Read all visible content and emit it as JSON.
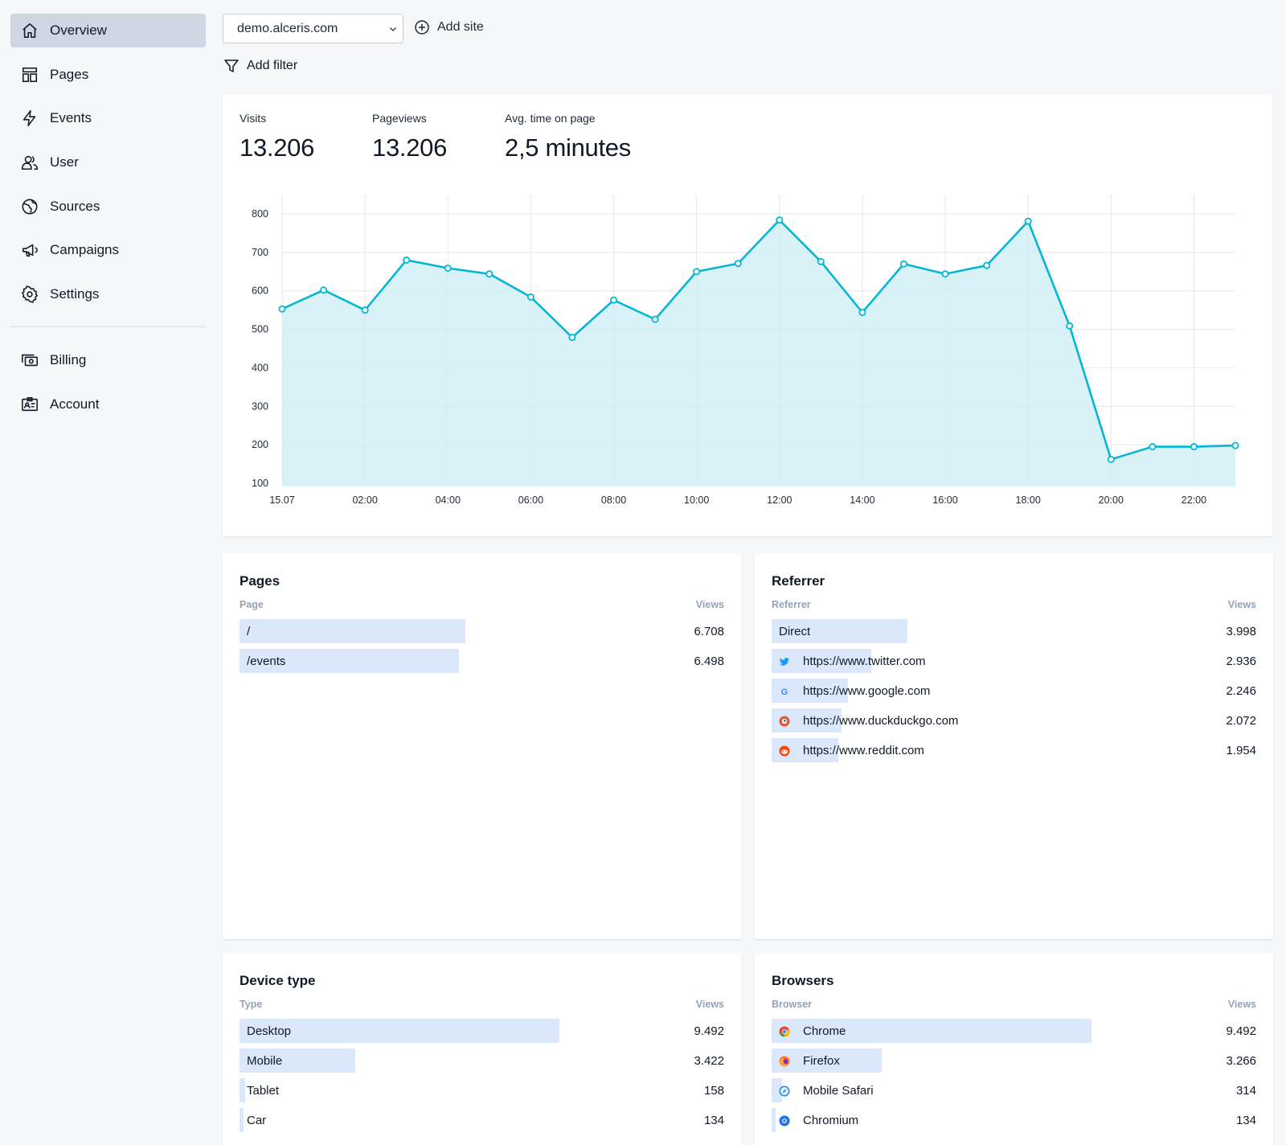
{
  "sidebar": {
    "items": [
      {
        "label": "Overview",
        "icon": "home-icon",
        "active": true
      },
      {
        "label": "Pages",
        "icon": "layout-icon"
      },
      {
        "label": "Events",
        "icon": "lightning-icon"
      },
      {
        "label": "User",
        "icon": "users-icon"
      },
      {
        "label": "Sources",
        "icon": "globe-icon"
      },
      {
        "label": "Campaigns",
        "icon": "megaphone-icon"
      },
      {
        "label": "Settings",
        "icon": "gear-icon"
      }
    ],
    "secondary": [
      {
        "label": "Billing",
        "icon": "cash-icon"
      },
      {
        "label": "Account",
        "icon": "id-card-icon"
      }
    ]
  },
  "topbar": {
    "site": "demo.alceris.com",
    "add_site": "Add site",
    "add_filter": "Add filter"
  },
  "stats": {
    "visits_label": "Visits",
    "visits_value": "13.206",
    "pageviews_label": "Pageviews",
    "pageviews_value": "13.206",
    "avg_label": "Avg. time on page",
    "avg_value": "2,5 minutes"
  },
  "chart_data": {
    "type": "area",
    "title": "",
    "xlabel": "",
    "ylabel": "",
    "x": [
      "15.07",
      "01:00",
      "02:00",
      "03:00",
      "04:00",
      "05:00",
      "06:00",
      "07:00",
      "08:00",
      "09:00",
      "10:00",
      "11:00",
      "12:00",
      "13:00",
      "14:00",
      "15:00",
      "16:00",
      "17:00",
      "18:00",
      "19:00",
      "20:00",
      "21:00",
      "22:00",
      "23:00"
    ],
    "x_tick_labels": [
      "15.07",
      "02:00",
      "04:00",
      "06:00",
      "08:00",
      "10:00",
      "12:00",
      "14:00",
      "16:00",
      "18:00",
      "20:00",
      "22:00"
    ],
    "y_ticks": [
      100,
      200,
      300,
      400,
      500,
      600,
      700,
      800
    ],
    "ylim": [
      100,
      800
    ],
    "series": [
      {
        "name": "Visits",
        "values": [
          553,
          602,
          550,
          680,
          659,
          644,
          584,
          479,
          576,
          526,
          650,
          671,
          784,
          676,
          544,
          670,
          644,
          666,
          781,
          509,
          162,
          195,
          195,
          198
        ]
      }
    ],
    "grid": true,
    "colors": {
      "line": "#06b6d4",
      "fill": "#cbeef5"
    }
  },
  "tables": {
    "pages": {
      "title": "Pages",
      "col_left": "Page",
      "col_right": "Views",
      "rows": [
        {
          "label": "/",
          "value": "6.708",
          "fraction": 0.466
        },
        {
          "label": "/events",
          "value": "6.498",
          "fraction": 0.452
        }
      ]
    },
    "referrer": {
      "title": "Referrer",
      "col_left": "Referrer",
      "col_right": "Views",
      "rows": [
        {
          "label": "Direct",
          "value": "3.998",
          "fraction": 0.28,
          "icon": ""
        },
        {
          "label": "https://www.twitter.com",
          "value": "2.936",
          "fraction": 0.206,
          "icon": "twitter-icon"
        },
        {
          "label": "https://www.google.com",
          "value": "2.246",
          "fraction": 0.157,
          "icon": "google-icon"
        },
        {
          "label": "https://www.duckduckgo.com",
          "value": "2.072",
          "fraction": 0.145,
          "icon": "duckduckgo-icon"
        },
        {
          "label": "https://www.reddit.com",
          "value": "1.954",
          "fraction": 0.137,
          "icon": "reddit-icon"
        }
      ]
    },
    "device": {
      "title": "Device type",
      "col_left": "Type",
      "col_right": "Views",
      "rows": [
        {
          "label": "Desktop",
          "value": "9.492",
          "fraction": 0.66
        },
        {
          "label": "Mobile",
          "value": "3.422",
          "fraction": 0.238
        },
        {
          "label": "Tablet",
          "value": "158",
          "fraction": 0.011
        },
        {
          "label": "Car",
          "value": "134",
          "fraction": 0.009
        }
      ]
    },
    "browsers": {
      "title": "Browsers",
      "col_left": "Browser",
      "col_right": "Views",
      "rows": [
        {
          "label": "Chrome",
          "value": "9.492",
          "fraction": 0.66,
          "icon": "chrome-icon"
        },
        {
          "label": "Firefox",
          "value": "3.266",
          "fraction": 0.227,
          "icon": "firefox-icon"
        },
        {
          "label": "Mobile Safari",
          "value": "314",
          "fraction": 0.022,
          "icon": "safari-icon"
        },
        {
          "label": "Chromium",
          "value": "134",
          "fraction": 0.009,
          "icon": "chromium-icon"
        }
      ]
    }
  },
  "colors": {
    "accent": "#06b6d4",
    "bar": "#dbe8fb",
    "active_nav": "#cdd6e2",
    "background": "#f6f7f9"
  }
}
